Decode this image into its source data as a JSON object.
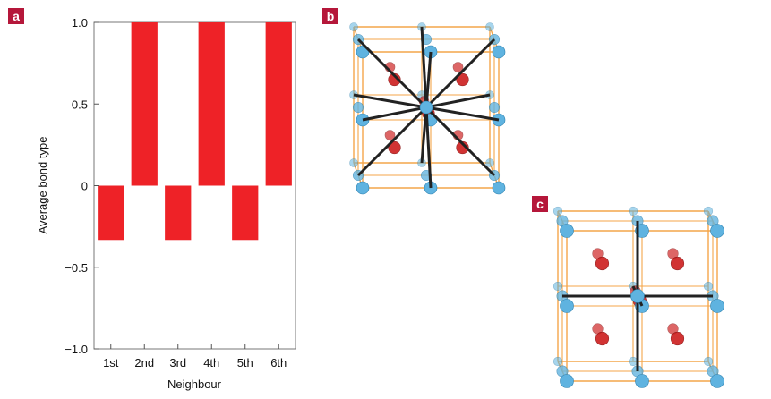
{
  "panels": {
    "a": "a",
    "b": "b",
    "c": "c"
  },
  "chart_data": {
    "type": "bar",
    "categories": [
      "1st",
      "2nd",
      "3rd",
      "4th",
      "5th",
      "6th"
    ],
    "values": [
      -0.333,
      1.0,
      -0.333,
      1.0,
      -0.333,
      1.0
    ],
    "xlabel": "Neighbour",
    "ylabel": "Average bond type",
    "ylim": [
      -1.0,
      1.0
    ],
    "yticks": [
      1.0,
      0.5,
      0,
      -0.5,
      -1.0
    ],
    "ytick_labels": [
      "1.0",
      "0.5",
      "0",
      "−0.5",
      "−1.0"
    ],
    "grid": false,
    "bar_color": "#ee2227"
  },
  "colors": {
    "bar": "#ee2227",
    "frame": "#f4a64a",
    "anion": "#cc1a1a",
    "cation": "#5fb3e0",
    "bond": "#222222"
  }
}
